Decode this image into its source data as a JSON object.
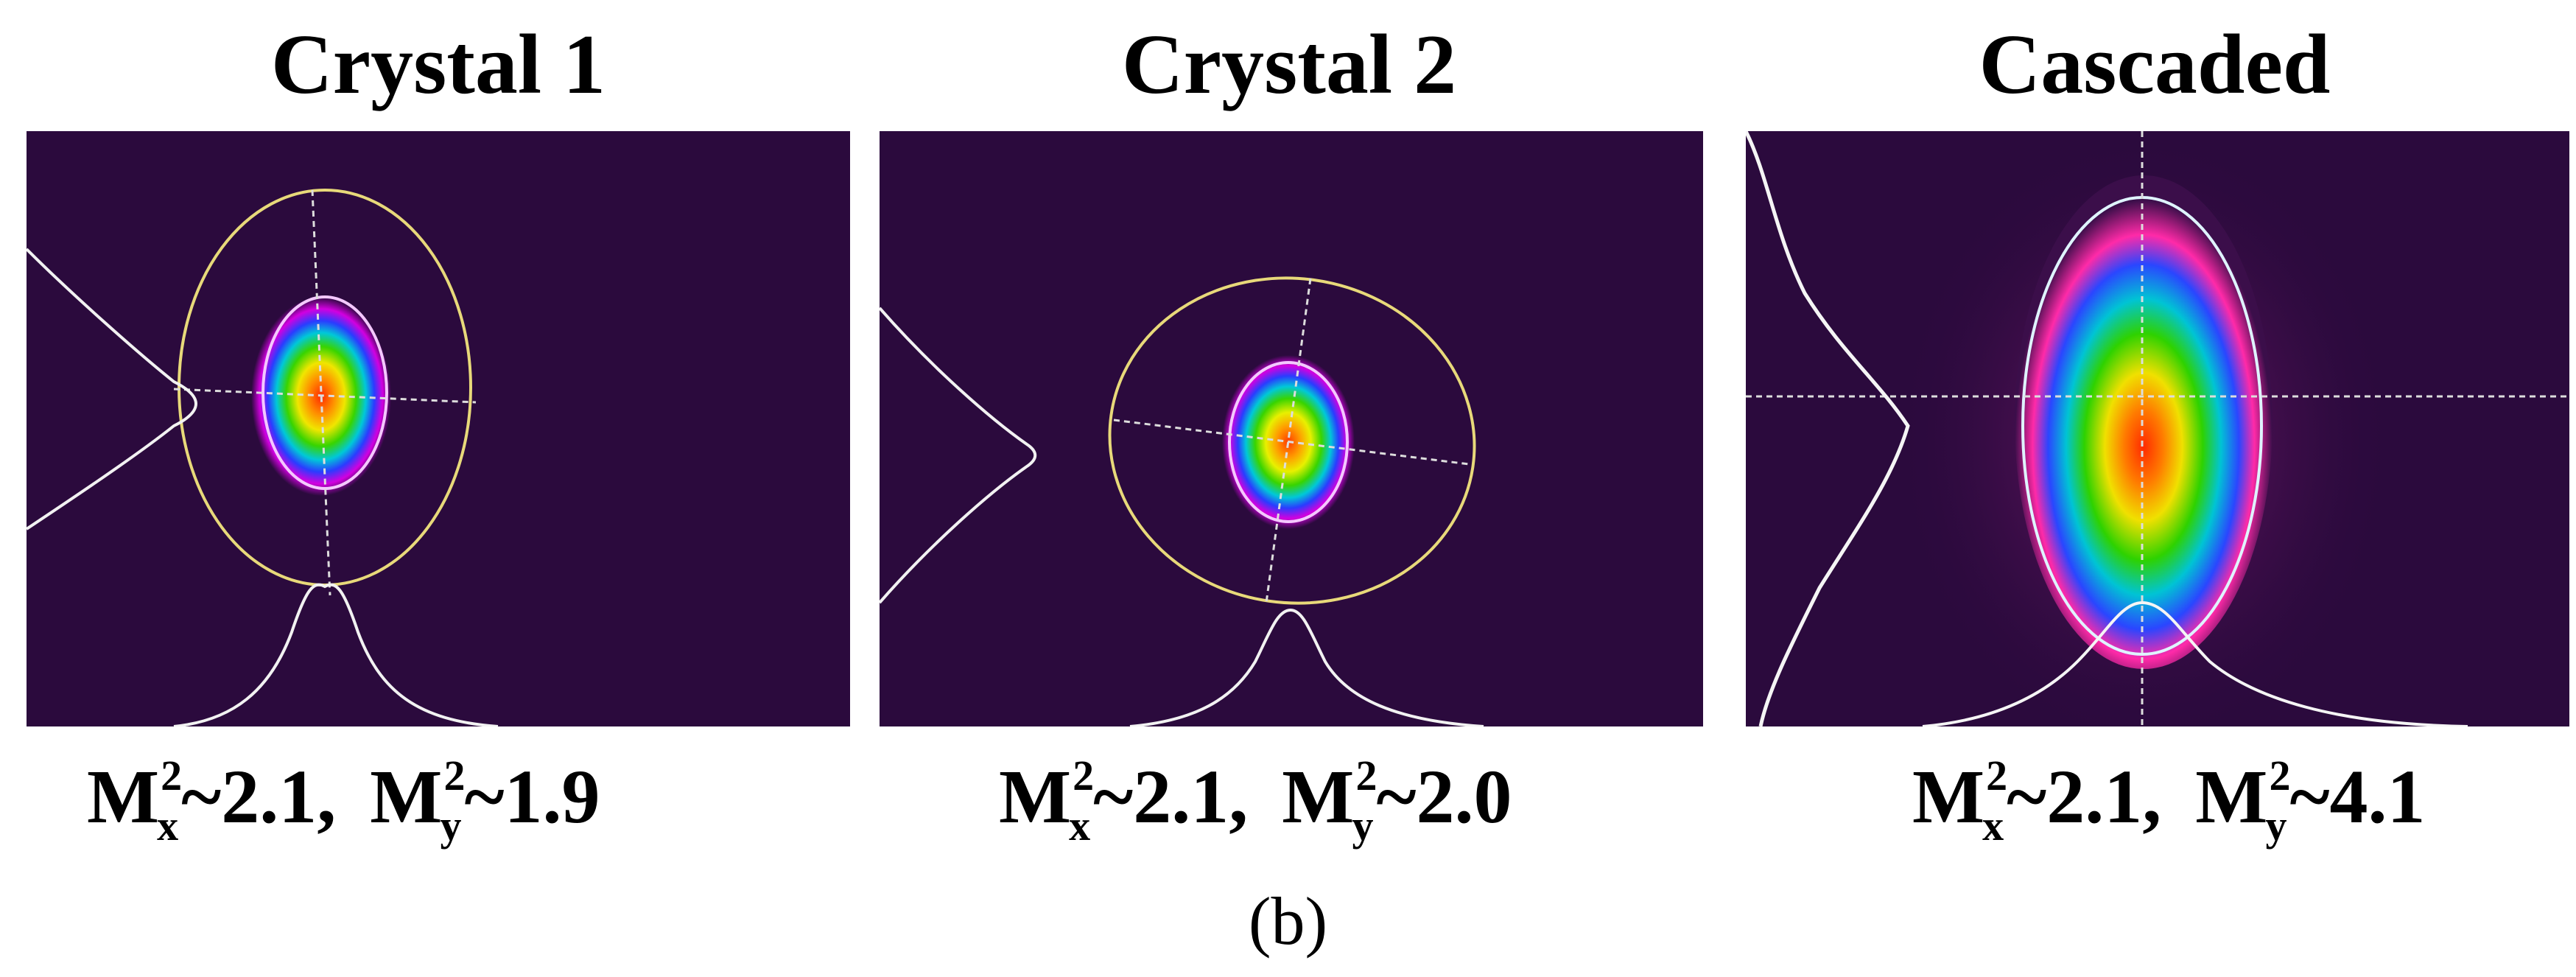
{
  "panels": [
    {
      "title": "Crystal 1",
      "caption": {
        "m": "M",
        "sq": "2",
        "x_sub": "x",
        "x_val": "~2.1,",
        "y_sub": "y",
        "y_val": "~1.9"
      }
    },
    {
      "title": "Crystal 2",
      "caption": {
        "m": "M",
        "sq": "2",
        "x_sub": "x",
        "x_val": "~2.1,",
        "y_sub": "y",
        "y_val": "~2.0"
      }
    },
    {
      "title": "Cascaded",
      "caption": {
        "m": "M",
        "sq": "2",
        "x_sub": "x",
        "x_val": "~2.1,",
        "y_sub": "y",
        "y_val": "~4.1"
      }
    }
  ],
  "figure_label": "(b)",
  "colors": {
    "background": "#2b0a3d",
    "ellipse_outer": "#e8d97a",
    "profile_line": "#f2f2f2"
  }
}
